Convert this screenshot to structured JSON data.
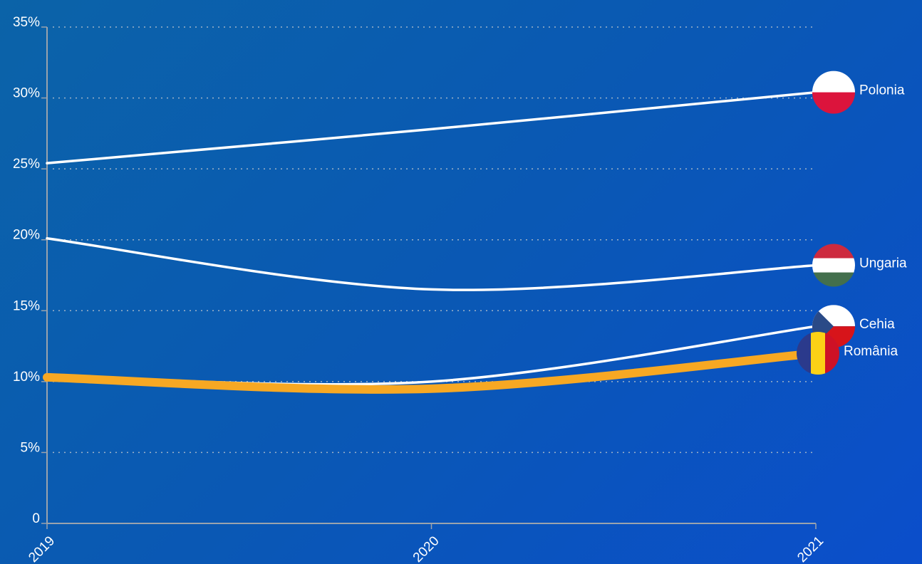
{
  "chart_data": {
    "type": "line",
    "categories": [
      "2019",
      "2020",
      "2021"
    ],
    "series": [
      {
        "name": "Polonia",
        "color": "#ffffff",
        "values": [
          25.4,
          27.8,
          30.4
        ]
      },
      {
        "name": "Ungaria",
        "color": "#ffffff",
        "values": [
          20.1,
          16.5,
          18.2
        ]
      },
      {
        "name": "Cehia",
        "color": "#ffffff",
        "values": [
          10.4,
          10.0,
          13.9
        ]
      },
      {
        "name": "România",
        "color": "#f7a823",
        "values": [
          10.3,
          9.5,
          12.0
        ]
      }
    ],
    "ylim": [
      0,
      35
    ],
    "yticks": [
      0,
      {
        "value": 5,
        "label": "5%"
      },
      {
        "value": 10,
        "label": "10%"
      },
      {
        "value": 15,
        "label": "15%"
      },
      {
        "value": 20,
        "label": "20%"
      },
      {
        "value": 25,
        "label": "25%"
      },
      {
        "value": 30,
        "label": "30%"
      },
      {
        "value": 35,
        "label": "35%"
      }
    ],
    "grid": true
  }
}
